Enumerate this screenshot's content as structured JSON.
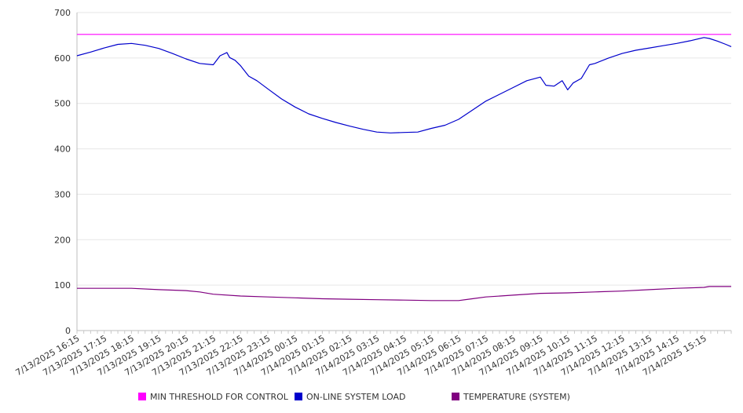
{
  "chart_data": {
    "type": "line",
    "title": "",
    "xlabel": "",
    "ylabel": "",
    "ylim": [
      0,
      700
    ],
    "yticks": [
      0,
      100,
      200,
      300,
      400,
      500,
      600,
      700
    ],
    "grid": true,
    "legend_position": "bottom",
    "categories": [
      "7/13/2025 16:15",
      "7/13/2025 17:15",
      "7/13/2025 18:15",
      "7/13/2025 19:15",
      "7/13/2025 20:15",
      "7/13/2025 21:15",
      "7/13/2025 22:15",
      "7/13/2025 23:15",
      "7/14/2025 00:15",
      "7/14/2025 01:15",
      "7/14/2025 02:15",
      "7/14/2025 03:15",
      "7/14/2025 04:15",
      "7/14/2025 05:15",
      "7/14/2025 06:15",
      "7/14/2025 07:15",
      "7/14/2025 08:15",
      "7/14/2025 09:15",
      "7/14/2025 10:15",
      "7/14/2025 11:15",
      "7/14/2025 12:15",
      "7/14/2025 13:15",
      "7/14/2025 14:15",
      "7/14/2025 15:15"
    ],
    "series": [
      {
        "name": "MIN THRESHOLD FOR CONTROL",
        "color": "#ff00ff",
        "x": [
          0,
          24
        ],
        "values": [
          652,
          652
        ]
      },
      {
        "name": "ON-LINE SYSTEM LOAD",
        "color": "#0000cc",
        "x": [
          0,
          0.5,
          1,
          1.5,
          2,
          2.5,
          3,
          3.5,
          4,
          4.5,
          5,
          5.25,
          5.5,
          5.6,
          5.8,
          6,
          6.3,
          6.6,
          7,
          7.5,
          8,
          8.5,
          9,
          9.5,
          10,
          10.5,
          11,
          11.5,
          12,
          12.5,
          13,
          13.5,
          14,
          14.5,
          15,
          15.5,
          16,
          16.5,
          17,
          17.2,
          17.5,
          17.8,
          18,
          18.2,
          18.5,
          18.8,
          19,
          19.5,
          20,
          20.5,
          21,
          21.5,
          22,
          22.5,
          23,
          23.2,
          23.5,
          23.8,
          24
        ],
        "values": [
          605,
          613,
          622,
          630,
          632,
          628,
          621,
          610,
          598,
          588,
          585,
          605,
          612,
          601,
          595,
          583,
          560,
          550,
          532,
          510,
          492,
          477,
          467,
          458,
          450,
          443,
          437,
          435,
          436,
          437,
          445,
          452,
          465,
          485,
          505,
          520,
          535,
          550,
          558,
          540,
          538,
          550,
          530,
          545,
          555,
          585,
          588,
          600,
          610,
          617,
          622,
          627,
          632,
          638,
          645,
          643,
          637,
          630,
          625
        ]
      },
      {
        "name": "TEMPERATURE (SYSTEM)",
        "color": "#800080",
        "x": [
          0,
          2,
          3,
          4,
          4.5,
          5,
          6,
          7,
          8,
          9,
          10,
          11,
          12,
          13,
          14,
          14.5,
          15,
          16,
          17,
          18,
          19,
          20,
          21,
          22,
          23,
          23.2,
          24
        ],
        "values": [
          93,
          93,
          90,
          88,
          85,
          80,
          76,
          74,
          72,
          70,
          69,
          68,
          67,
          66,
          66,
          70,
          74,
          78,
          82,
          83,
          85,
          87,
          90,
          93,
          95,
          97,
          97
        ]
      }
    ]
  }
}
